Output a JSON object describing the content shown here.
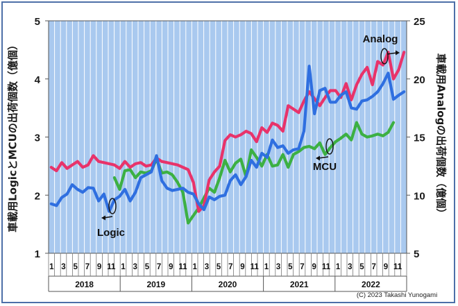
{
  "chart_data": {
    "type": "line",
    "ylabel_left": "車載用LogicとMCUの出荷個数（億個）",
    "ylabel_right": "車載用Analogの出荷個数（億個）",
    "ylim_left": [
      1,
      5
    ],
    "ylim_right": [
      5,
      25
    ],
    "yticks_left": [
      "1",
      "2",
      "3",
      "4",
      "5"
    ],
    "yticks_right": [
      "5",
      "10",
      "15",
      "20",
      "25"
    ],
    "xtick_labels": [
      "1",
      "",
      "3",
      "",
      "5",
      "",
      "7",
      "",
      "9",
      "",
      "11",
      ""
    ],
    "years": [
      "2018",
      "2019",
      "2020",
      "2021",
      "2022"
    ],
    "grid": "vertical",
    "background": "#a9c9ef",
    "copyright": "(C) 2023 Takashi Yunogami",
    "series": [
      {
        "name": "Logic",
        "axis": "left",
        "color": "#2f6fe0",
        "values": [
          1.85,
          1.82,
          1.96,
          2.02,
          2.18,
          2.1,
          2.05,
          2.13,
          2.12,
          1.9,
          2.02,
          1.72,
          1.92,
          1.98,
          2.1,
          1.9,
          2.05,
          2.3,
          2.35,
          2.4,
          2.68,
          2.25,
          2.12,
          2.08,
          2.1,
          2.12,
          2.05,
          2.02,
          1.85,
          1.75,
          1.97,
          1.92,
          1.98,
          2.0,
          2.25,
          2.35,
          2.18,
          2.32,
          2.6,
          2.48,
          2.72,
          2.65,
          2.95,
          2.82,
          2.85,
          2.72,
          2.78,
          2.8,
          3.1,
          4.22,
          3.4,
          3.8,
          3.84,
          3.6,
          3.6,
          3.72,
          3.78,
          3.5,
          3.48,
          3.62,
          3.64,
          3.7,
          3.78,
          3.92,
          4.1,
          3.65,
          3.72,
          3.78
        ]
      },
      {
        "name": "MCU",
        "axis": "left",
        "color": "#3cb043",
        "values": [
          null,
          null,
          null,
          null,
          null,
          null,
          null,
          null,
          null,
          null,
          null,
          null,
          2.3,
          2.1,
          2.42,
          2.44,
          2.3,
          2.4,
          2.38,
          2.42,
          2.62,
          2.38,
          2.4,
          2.35,
          2.22,
          2.05,
          1.52,
          1.65,
          1.78,
          1.95,
          2.12,
          2.05,
          2.3,
          2.6,
          2.4,
          2.55,
          2.62,
          2.32,
          2.78,
          2.65,
          2.5,
          2.7,
          2.5,
          2.52,
          2.7,
          2.48,
          2.7,
          2.75,
          2.82,
          2.84,
          2.8,
          2.9,
          2.7,
          2.82,
          2.92,
          2.98,
          3.05,
          2.95,
          3.25,
          3.05,
          3.0,
          3.02,
          3.05,
          3.02,
          3.08,
          3.25
        ]
      },
      {
        "name": "Analog",
        "axis": "right",
        "color": "#e8336a",
        "values": [
          12.4,
          12.1,
          12.8,
          12.3,
          12.6,
          12.9,
          12.4,
          12.6,
          13.4,
          12.9,
          12.8,
          12.7,
          12.6,
          12.3,
          12.9,
          12.4,
          12.7,
          12.8,
          12.5,
          12.6,
          13.2,
          12.9,
          12.8,
          12.7,
          12.6,
          12.4,
          12.2,
          11.1,
          8.6,
          9.1,
          11.3,
          12.0,
          12.5,
          14.7,
          15.2,
          15.0,
          15.2,
          15.5,
          15.3,
          14.6,
          15.8,
          15.4,
          16.2,
          16.0,
          15.5,
          17.7,
          17.4,
          17.1,
          18.1,
          18.9,
          18.3,
          17.7,
          18.4,
          19.0,
          19.0,
          18.4,
          19.6,
          18.2,
          19.5,
          20.4,
          21.0,
          19.5,
          21.5,
          21.2,
          22.3,
          20.0,
          20.8,
          22.3
        ]
      }
    ],
    "annotations": [
      {
        "text": "Logic"
      },
      {
        "text": "MCU"
      },
      {
        "text": "Analog"
      }
    ]
  }
}
